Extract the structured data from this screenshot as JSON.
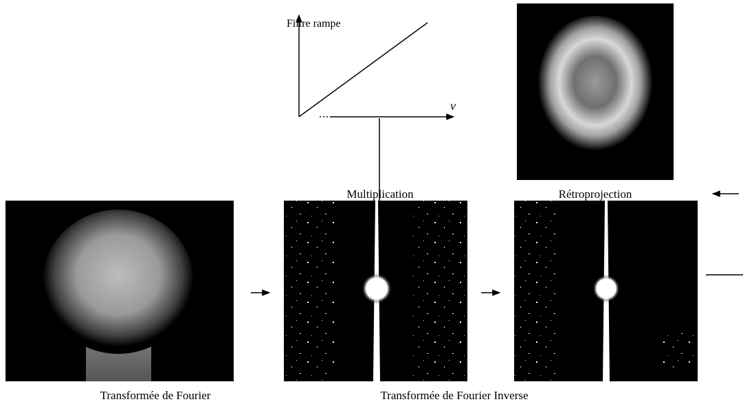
{
  "filter": {
    "title": "Filtre rampe",
    "axis": "v"
  },
  "labels": {
    "multiplication": "Multiplication",
    "backprojection": "Rétroprojection",
    "fourier": "Transformée de Fourier",
    "inverse": "Transformée de Fourier Inverse"
  }
}
